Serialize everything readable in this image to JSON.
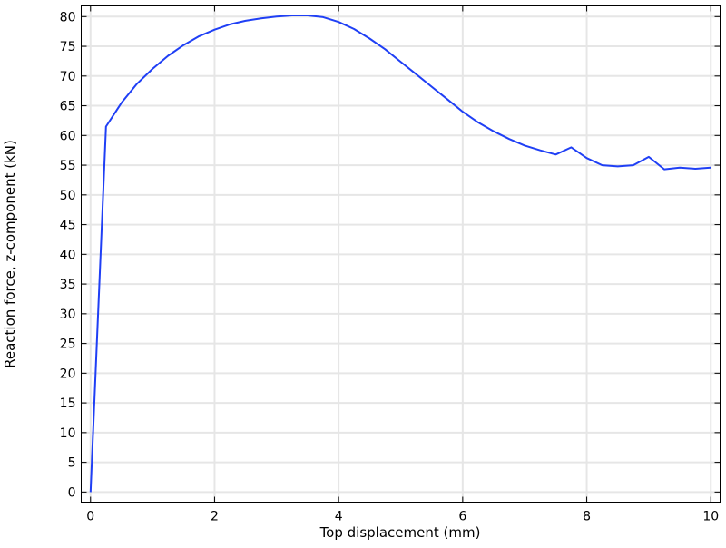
{
  "chart_data": {
    "type": "line",
    "title": "",
    "xlabel": "Top displacement (mm)",
    "ylabel": "Reaction force, z-component (kN)",
    "xlim": [
      -0.15,
      10.15
    ],
    "ylim": [
      -1.7,
      81.8
    ],
    "xticks": [
      0,
      2,
      4,
      6,
      8,
      10
    ],
    "yticks": [
      0,
      5,
      10,
      15,
      20,
      25,
      30,
      35,
      40,
      45,
      50,
      55,
      60,
      65,
      70,
      75,
      80
    ],
    "grid": true,
    "line_color": "#1f3ff5",
    "series": [
      {
        "x": [
          0,
          0.25,
          0.5,
          0.75,
          1,
          1.25,
          1.5,
          1.75,
          2,
          2.25,
          2.5,
          2.75,
          3,
          3.25,
          3.5,
          3.75,
          4,
          4.25,
          4.5,
          4.75,
          5,
          5.25,
          5.5,
          5.75,
          6,
          6.25,
          6.5,
          6.75,
          7,
          7.25,
          7.5,
          7.75,
          8,
          8.25,
          8.5,
          8.75,
          9,
          9.25,
          9.5,
          9.75,
          10
        ],
        "y": [
          0,
          61.5,
          65.5,
          68.7,
          71.2,
          73.4,
          75.2,
          76.7,
          77.8,
          78.7,
          79.3,
          79.7,
          80.0,
          80.2,
          80.2,
          79.9,
          79.1,
          77.9,
          76.3,
          74.5,
          72.4,
          70.3,
          68.2,
          66.1,
          64.0,
          62.2,
          60.7,
          59.4,
          58.3,
          57.5,
          56.8,
          58.0,
          56.2,
          55.0,
          54.8,
          55.0,
          56.4,
          54.3,
          54.6,
          54.4,
          54.6
        ]
      }
    ]
  }
}
